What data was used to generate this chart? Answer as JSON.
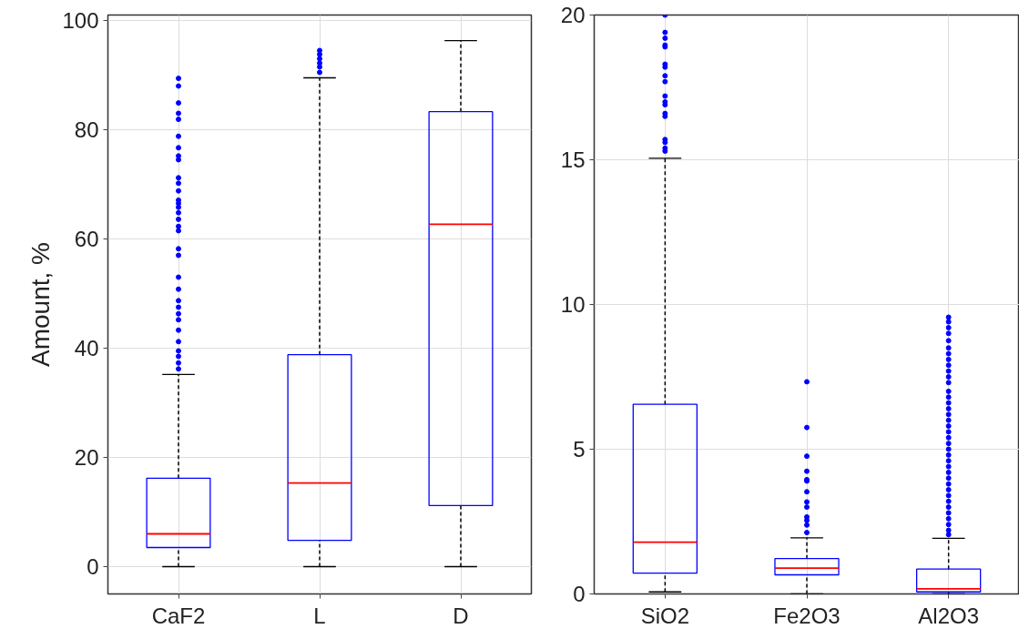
{
  "chart_data": [
    {
      "type": "box",
      "ylabel": "Amount, %",
      "categories": [
        "CaF2",
        "L",
        "D"
      ],
      "ylim": [
        -5,
        101
      ],
      "yticks": [
        0,
        20,
        40,
        60,
        80,
        100
      ],
      "grid": true,
      "marker": "circle",
      "series": [
        {
          "color": "#0000ff",
          "boxes": [
            {
              "low": 0,
              "q1": 3.5,
              "median": 6,
              "q3": 16.2,
              "high": 35.2,
              "outliers": [
                89.4,
                88,
                84.9,
                83,
                81.9,
                78.8,
                76.7,
                75.2,
                74.5,
                71.2,
                70.2,
                68.8,
                67.1,
                66.5,
                65.8,
                64.8,
                63.6,
                62.3,
                61.5,
                58.2,
                57,
                53,
                50.8,
                48.7,
                47.5,
                46.3,
                45.2,
                43.3,
                41.2,
                39.5,
                38.5,
                37.3,
                36.2
              ]
            },
            {
              "low": 0,
              "q1": 4.8,
              "median": 15.3,
              "q3": 38.8,
              "high": 89.5,
              "outliers": [
                94.5,
                93.8,
                93,
                92.2,
                91.5,
                90.5
              ]
            },
            {
              "low": 0,
              "q1": 11.2,
              "median": 62.7,
              "q3": 83.3,
              "high": 96.3
            }
          ]
        }
      ]
    },
    {
      "type": "box",
      "categories": [
        "SiO2",
        "Fe2O3",
        "Al2O3"
      ],
      "ylim": [
        0,
        20
      ],
      "yticks": [
        0,
        5,
        10,
        15,
        20
      ],
      "grid": true,
      "marker": "circle",
      "series": [
        {
          "color": "#0000ff",
          "boxes": [
            {
              "low": 0.07,
              "q1": 0.72,
              "median": 1.79,
              "q3": 6.55,
              "high": 15.05,
              "outliers": [
                20.0,
                19.4,
                19.2,
                18.96,
                18.9,
                18.3,
                18.2,
                17.9,
                17.7,
                17.2,
                17.0,
                16.9,
                16.6,
                16.5,
                15.7,
                15.6,
                15.4,
                15.3
              ]
            },
            {
              "low": 0,
              "q1": 0.66,
              "median": 0.89,
              "q3": 1.22,
              "high": 1.94,
              "outliers": [
                7.33,
                5.75,
                4.76,
                4.24,
                3.95,
                3.9,
                3.53,
                3.18,
                3.0,
                2.66,
                2.54,
                2.38,
                2.12
              ]
            },
            {
              "low": 0,
              "q1": 0.07,
              "median": 0.18,
              "q3": 0.86,
              "high": 1.92,
              "outliers": [
                9.56,
                9.4,
                9.2,
                9.0,
                8.75,
                8.5,
                8.3,
                8.1,
                7.9,
                7.7,
                7.5,
                7.3,
                7.0,
                6.8,
                6.6,
                6.4,
                6.2,
                6.0,
                5.8,
                5.6,
                5.4,
                5.2,
                5.0,
                4.8,
                4.6,
                4.4,
                4.2,
                4.0,
                3.8,
                3.6,
                3.4,
                3.2,
                3.0,
                2.8,
                2.6,
                2.4,
                2.2,
                2.05
              ]
            }
          ]
        }
      ]
    }
  ]
}
